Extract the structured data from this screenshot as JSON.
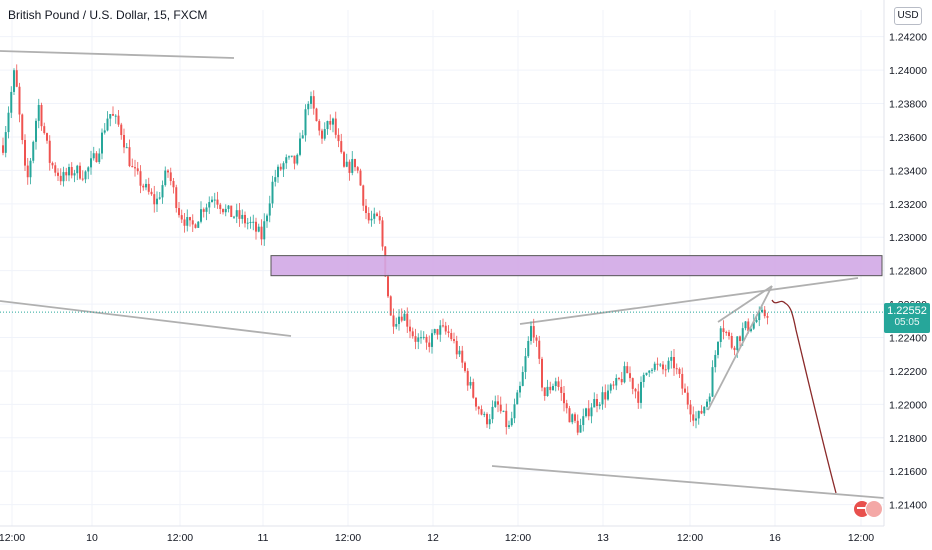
{
  "header": {
    "title": "British Pound / U.S. Dollar, 15, FXCM",
    "currency": "USD"
  },
  "price_tag": {
    "price": "1.22552",
    "countdown": "05:05"
  },
  "colors": {
    "up": "#26a69a",
    "down": "#ef5350",
    "grid": "#f0f3fa",
    "zone_fill": "#d1a9e6",
    "zone_stroke": "#555555",
    "trendline": "#b0b0b0",
    "projection": "#8b2a2a"
  },
  "chart_data": {
    "type": "candlestick",
    "symbol": "British Pound / U.S. Dollar, 15, FXCM",
    "y_ticks": [
      "1.24200",
      "1.24000",
      "1.23800",
      "1.23600",
      "1.23400",
      "1.23200",
      "1.23000",
      "1.22800",
      "1.22600",
      "1.22400",
      "1.22200",
      "1.22000",
      "1.21800",
      "1.21600",
      "1.21400"
    ],
    "x_ticks": [
      "12:00",
      "10",
      "12:00",
      "11",
      "12:00",
      "12",
      "12:00",
      "13",
      "12:00",
      "16",
      "12:00"
    ],
    "ylim": [
      1.2138,
      1.2424
    ],
    "last_price": 1.22552,
    "price_path": [
      1.2355,
      1.24,
      1.233,
      1.238,
      1.2345,
      1.2335,
      1.234,
      1.2338,
      1.235,
      1.2375,
      1.2365,
      1.234,
      1.233,
      1.232,
      1.234,
      1.2315,
      1.2305,
      1.2318,
      1.2325,
      1.2315,
      1.2312,
      1.2308,
      1.23,
      1.2335,
      1.2345,
      1.2345,
      1.2385,
      1.236,
      1.237,
      1.234,
      1.2345,
      1.231,
      1.231,
      1.225,
      1.2255,
      1.224,
      1.2235,
      1.2245,
      1.2242,
      1.2225,
      1.2205,
      1.219,
      1.22,
      1.2185,
      1.221,
      1.225,
      1.2205,
      1.2215,
      1.2195,
      1.2185,
      1.22,
      1.2205,
      1.221,
      1.222,
      1.2205,
      1.2225,
      1.222,
      1.2225,
      1.2205,
      1.219,
      1.2205,
      1.225,
      1.2235,
      1.2245,
      1.225,
      1.2255
    ],
    "resistance_zone": [
      1.2277,
      1.2289
    ],
    "projection_target": 1.2146
  }
}
